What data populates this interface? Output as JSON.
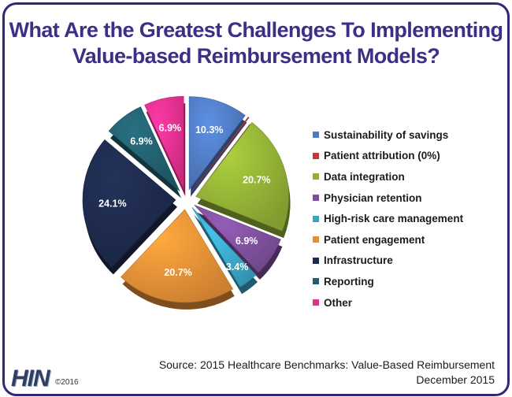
{
  "chart_data": {
    "type": "pie",
    "title": "What Are the Greatest Challenges To Implementing Value-based Reimbursement Models?",
    "title_lines": [
      "What Are the Greatest Challenges To Implementing",
      "Value-based Reimbursement Models?"
    ],
    "slices": [
      {
        "label": "Sustainability of savings",
        "value": 10.3,
        "display": "10.3%",
        "color": "#4f7ac1"
      },
      {
        "label": "Patient attribution (0%)",
        "value": 0.0,
        "display": "",
        "color": "#c0393b"
      },
      {
        "label": "Data integration",
        "value": 20.7,
        "display": "20.7%",
        "color": "#92b035"
      },
      {
        "label": "Physician retention",
        "value": 6.9,
        "display": "6.9%",
        "color": "#7d4f9b"
      },
      {
        "label": "High-risk care management",
        "value": 3.4,
        "display": "3.4%",
        "color": "#3aa6c7"
      },
      {
        "label": "Patient engagement",
        "value": 20.7,
        "display": "20.7%",
        "color": "#e58f35"
      },
      {
        "label": "Infrastructure",
        "value": 24.1,
        "display": "24.1%",
        "color": "#1e2a4c"
      },
      {
        "label": "Reporting",
        "value": 6.9,
        "display": "6.9%",
        "color": "#225f6e"
      },
      {
        "label": "Other",
        "value": 6.9,
        "display": "6.9%",
        "color": "#e6308e"
      }
    ],
    "legend_position": "right"
  },
  "source": {
    "line1": "Source: 2015 Healthcare Benchmarks: Value-Based Reimbursement",
    "line2": "December 2015"
  },
  "logo": {
    "text": "HIN",
    "copyright": "©2016"
  }
}
